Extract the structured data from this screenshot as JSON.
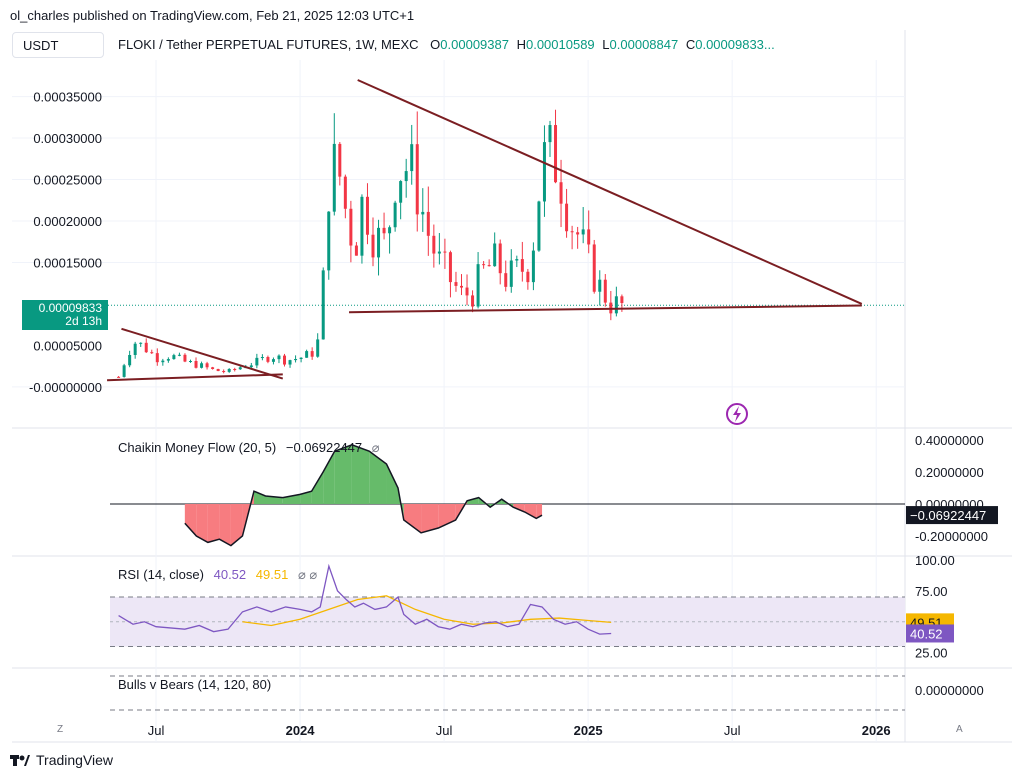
{
  "header": {
    "published": "ol_charles published on TradingView.com, Feb 21, 2025 12:03 UTC+1",
    "symbol_box": "USDT",
    "title": "FLOKI / Tether PERPETUAL FUTURES, 1W, MEXC",
    "ohlc": [
      {
        "label": "O",
        "value": "0.00009387"
      },
      {
        "label": "H",
        "value": "0.00010589"
      },
      {
        "label": "L",
        "value": "0.00008847"
      },
      {
        "label": "C",
        "value": "0.00009833..."
      }
    ]
  },
  "price_label": {
    "value": "0.00009833",
    "countdown": "2d 13h"
  },
  "colors": {
    "up": "#089981",
    "down": "#f23645",
    "trend": "#7b1e22",
    "cmf_pos": "#66bb6a",
    "cmf_neg": "#f77c80",
    "rsi": "#7e57c2",
    "rsi_ma": "#f5b700",
    "band": "#ede7f6"
  },
  "chart_data": [
    {
      "type": "candlestick",
      "title": "FLOKI / Tether PERPETUAL FUTURES, 1W, MEXC",
      "ylim": [
        -4e-05,
        0.00037
      ],
      "y_ticks": [
        "0.00035000",
        "0.00030000",
        "0.00025000",
        "0.00020000",
        "0.00015000",
        "-0.00000000"
      ],
      "y_tick_values": [
        0.00035,
        0.0003,
        0.00025,
        0.0002,
        0.00015,
        0.0
      ],
      "y_tick_extra": {
        "label": "0.00005000",
        "value": 5e-05
      },
      "x_ticks": [
        "Jul",
        "2024",
        "Jul",
        "2025",
        "Jul",
        "2026"
      ],
      "last_close": 9.833e-05,
      "close_path": [
        [
          2023.37,
          1.2e-05
        ],
        [
          2023.42,
          5.5e-05
        ],
        [
          2023.46,
          4.8e-05
        ],
        [
          2023.5,
          3.5e-05
        ],
        [
          2023.55,
          3.8e-05
        ],
        [
          2023.6,
          3e-05
        ],
        [
          2023.65,
          2.6e-05
        ],
        [
          2023.7,
          2e-05
        ],
        [
          2023.75,
          1.8e-05
        ],
        [
          2023.8,
          2.5e-05
        ],
        [
          2023.85,
          3e-05
        ],
        [
          2023.9,
          3.8e-05
        ],
        [
          2023.95,
          3.2e-05
        ],
        [
          2024.0,
          3.5e-05
        ],
        [
          2024.04,
          4e-05
        ],
        [
          2024.07,
          6e-05
        ],
        [
          2024.1,
          0.00025
        ],
        [
          2024.13,
          0.00027
        ],
        [
          2024.16,
          0.00021
        ],
        [
          2024.19,
          0.00017
        ],
        [
          2024.22,
          0.00023
        ],
        [
          2024.26,
          0.00018
        ],
        [
          2024.3,
          0.00017
        ],
        [
          2024.33,
          0.00026
        ],
        [
          2024.36,
          0.00027
        ],
        [
          2024.4,
          0.00025
        ],
        [
          2024.44,
          0.00019
        ],
        [
          2024.48,
          0.00015
        ],
        [
          2024.52,
          0.00013
        ],
        [
          2024.56,
          0.00011
        ],
        [
          2024.6,
          0.000115
        ],
        [
          2024.64,
          0.00014
        ],
        [
          2024.68,
          0.00015
        ],
        [
          2024.72,
          0.00013
        ],
        [
          2024.76,
          0.00014
        ],
        [
          2024.8,
          0.00015
        ],
        [
          2024.84,
          0.00027
        ],
        [
          2024.88,
          0.00028
        ],
        [
          2024.91,
          0.00025
        ],
        [
          2024.94,
          0.0002
        ],
        [
          2024.97,
          0.00018
        ],
        [
          2025.0,
          0.00015
        ],
        [
          2025.04,
          0.00012
        ],
        [
          2025.08,
          0.0001
        ],
        [
          2025.12,
          9.8e-05
        ]
      ],
      "trendlines": [
        {
          "from": [
            2023.38,
            7e-05
          ],
          "to": [
            2023.94,
            1e-05
          ]
        },
        {
          "from": [
            2023.33,
            8e-06
          ],
          "to": [
            2023.94,
            1.5e-05
          ]
        },
        {
          "from": [
            2024.2,
            0.00037
          ],
          "to": [
            2025.95,
            0.0001
          ]
        },
        {
          "from": [
            2024.17,
            9e-05
          ],
          "to": [
            2025.95,
            9.8e-05
          ]
        }
      ]
    },
    {
      "type": "area",
      "title": "Chaikin Money Flow (20, 5)",
      "value_label": "−0.06922447",
      "value": -0.06922447,
      "ylim": [
        -0.3,
        0.45
      ],
      "y_ticks": [
        "0.40000000",
        "0.20000000",
        "0.00000000",
        "-0.20000000"
      ],
      "y_tick_values": [
        0.4,
        0.2,
        0.0,
        -0.2
      ],
      "series": [
        [
          2023.6,
          -0.12
        ],
        [
          2023.64,
          -0.2
        ],
        [
          2023.68,
          -0.24
        ],
        [
          2023.72,
          -0.22
        ],
        [
          2023.76,
          -0.26
        ],
        [
          2023.8,
          -0.2
        ],
        [
          2023.84,
          0.08
        ],
        [
          2023.88,
          0.05
        ],
        [
          2023.94,
          0.04
        ],
        [
          2024.0,
          0.06
        ],
        [
          2024.04,
          0.08
        ],
        [
          2024.08,
          0.2
        ],
        [
          2024.12,
          0.33
        ],
        [
          2024.18,
          0.37
        ],
        [
          2024.24,
          0.33
        ],
        [
          2024.3,
          0.25
        ],
        [
          2024.34,
          0.1
        ],
        [
          2024.36,
          -0.1
        ],
        [
          2024.42,
          -0.18
        ],
        [
          2024.48,
          -0.15
        ],
        [
          2024.54,
          -0.1
        ],
        [
          2024.58,
          0.02
        ],
        [
          2024.62,
          0.04
        ],
        [
          2024.66,
          -0.02
        ],
        [
          2024.7,
          0.03
        ],
        [
          2024.74,
          -0.02
        ],
        [
          2024.78,
          -0.05
        ],
        [
          2024.82,
          -0.09
        ],
        [
          2024.84,
          -0.07
        ]
      ]
    },
    {
      "type": "line",
      "title": "RSI (14, close)",
      "value_labels": [
        "40.52",
        "49.51"
      ],
      "series_values": [
        40.52,
        49.51
      ],
      "ylim": [
        15,
        100
      ],
      "y_ticks": [
        "100.00",
        "75.00",
        "25.00"
      ],
      "y_tick_values": [
        100,
        75,
        25
      ],
      "band": [
        30,
        70
      ],
      "mid": 50,
      "rsi": [
        [
          2023.37,
          55
        ],
        [
          2023.42,
          48
        ],
        [
          2023.46,
          50
        ],
        [
          2023.5,
          46
        ],
        [
          2023.55,
          45
        ],
        [
          2023.6,
          44
        ],
        [
          2023.65,
          47
        ],
        [
          2023.7,
          42
        ],
        [
          2023.75,
          44
        ],
        [
          2023.8,
          58
        ],
        [
          2023.85,
          62
        ],
        [
          2023.9,
          58
        ],
        [
          2023.95,
          62
        ],
        [
          2024.0,
          60
        ],
        [
          2024.04,
          58
        ],
        [
          2024.07,
          62
        ],
        [
          2024.1,
          95
        ],
        [
          2024.13,
          75
        ],
        [
          2024.16,
          68
        ],
        [
          2024.19,
          62
        ],
        [
          2024.22,
          65
        ],
        [
          2024.26,
          60
        ],
        [
          2024.3,
          62
        ],
        [
          2024.34,
          70
        ],
        [
          2024.36,
          56
        ],
        [
          2024.4,
          48
        ],
        [
          2024.44,
          52
        ],
        [
          2024.48,
          46
        ],
        [
          2024.52,
          44
        ],
        [
          2024.56,
          48
        ],
        [
          2024.6,
          46
        ],
        [
          2024.64,
          49
        ],
        [
          2024.68,
          50
        ],
        [
          2024.72,
          46
        ],
        [
          2024.76,
          48
        ],
        [
          2024.8,
          64
        ],
        [
          2024.84,
          62
        ],
        [
          2024.88,
          52
        ],
        [
          2024.92,
          48
        ],
        [
          2024.96,
          50
        ],
        [
          2025.0,
          44
        ],
        [
          2025.04,
          40
        ],
        [
          2025.08,
          40.5
        ]
      ],
      "rsi_ma": [
        [
          2023.8,
          50
        ],
        [
          2023.9,
          47
        ],
        [
          2024.0,
          52
        ],
        [
          2024.1,
          60
        ],
        [
          2024.2,
          68
        ],
        [
          2024.3,
          71
        ],
        [
          2024.4,
          60
        ],
        [
          2024.5,
          52
        ],
        [
          2024.6,
          48
        ],
        [
          2024.7,
          49
        ],
        [
          2024.8,
          52
        ],
        [
          2024.9,
          53
        ],
        [
          2025.0,
          51
        ],
        [
          2025.08,
          49.5
        ]
      ]
    },
    {
      "type": "line",
      "title": "Bulls v Bears (14, 120, 80)",
      "y_ticks": [
        "0.00000000"
      ],
      "y_tick_values": [
        0.0
      ],
      "ylim": [
        -1,
        1
      ]
    }
  ],
  "x_axis": {
    "ticks": [
      "Jul",
      "2024",
      "Jul",
      "2025",
      "Jul",
      "2026"
    ],
    "tick_values": [
      2023.5,
      2024.0,
      2024.5,
      2025.0,
      2025.5,
      2026.0
    ],
    "range": [
      2023.0,
      2026.1
    ]
  },
  "footer": {
    "brand": "TradingView",
    "left_btn": "Z",
    "right_btn": "A"
  }
}
